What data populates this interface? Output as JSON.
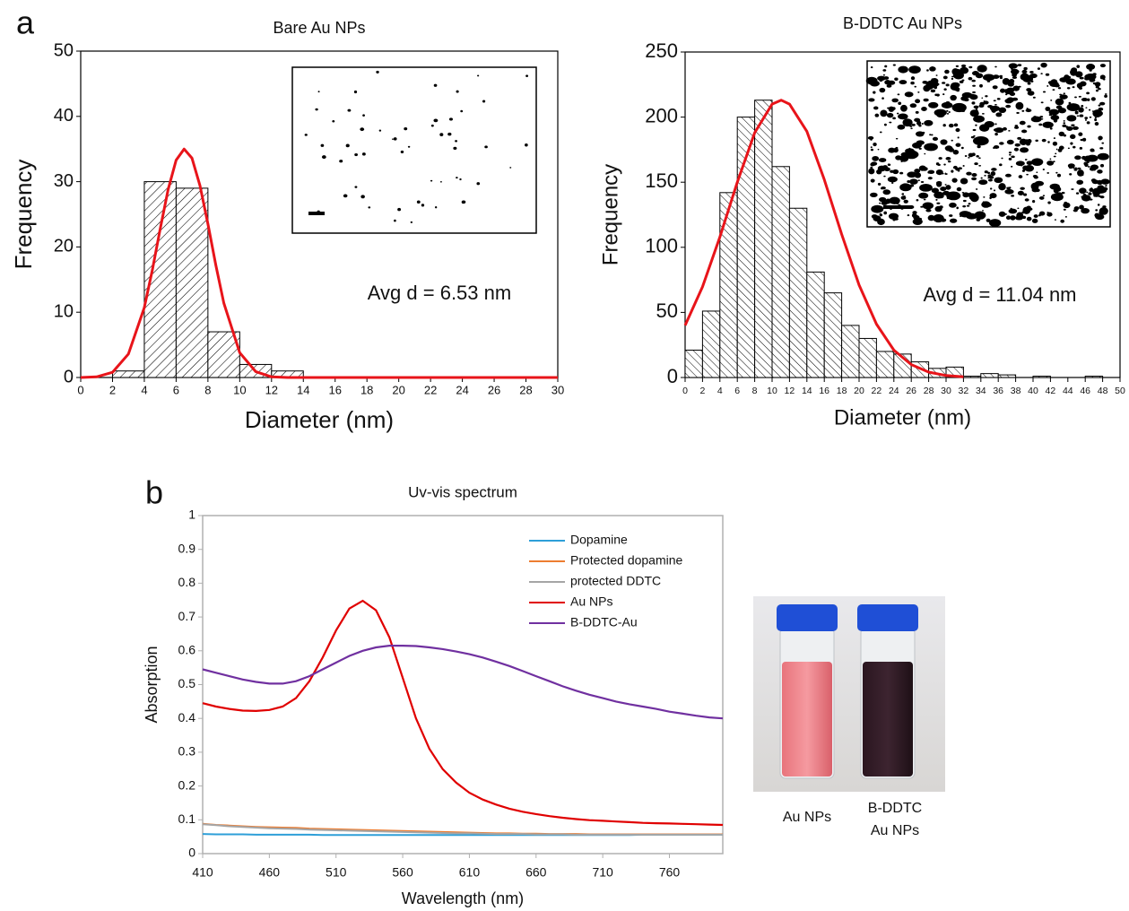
{
  "chart_data": [
    {
      "type": "histogram",
      "panel_label": "a",
      "title": "Bare Au NPs",
      "xlabel": "Diameter (nm)",
      "ylabel": "Frequency",
      "bins": [
        0,
        2,
        4,
        6,
        8,
        10,
        12,
        14,
        16,
        18,
        20,
        22,
        24,
        26,
        28,
        30
      ],
      "values": [
        0,
        1,
        30,
        29,
        7,
        2,
        1,
        0,
        0,
        0,
        0,
        0,
        0,
        0,
        0
      ],
      "color": "#000000",
      "curve": {
        "x": [
          0,
          1,
          2,
          3,
          4,
          4.5,
          5,
          5.5,
          6,
          6.5,
          7,
          7.5,
          8,
          8.5,
          9,
          10,
          11,
          12,
          13,
          14,
          30
        ],
        "values": [
          0,
          0.1,
          0.8,
          3.6,
          10.7,
          16.4,
          22.8,
          28.8,
          33.3,
          35,
          33.6,
          29.4,
          23.5,
          17.2,
          11.4,
          3.8,
          0.9,
          0.1,
          0,
          0,
          0
        ],
        "color": "#e8141a"
      },
      "annotation": "Avg d = 6.53 nm",
      "xlim": [
        0,
        30
      ],
      "xticks": [
        0,
        2,
        4,
        6,
        8,
        10,
        12,
        14,
        16,
        18,
        20,
        22,
        24,
        26,
        28,
        30
      ],
      "ylim": [
        0,
        50
      ],
      "yticks": [
        0,
        10,
        20,
        30,
        40,
        50
      ]
    },
    {
      "type": "histogram",
      "title": "B-DDTC Au NPs",
      "xlabel": "Diameter (nm)",
      "ylabel": "Frequency",
      "bins": [
        0,
        2,
        4,
        6,
        8,
        10,
        12,
        14,
        16,
        18,
        20,
        22,
        24,
        26,
        28,
        30,
        32,
        34,
        36,
        38,
        40,
        42,
        44,
        46,
        48,
        50
      ],
      "values": [
        21,
        51,
        142,
        200,
        213,
        162,
        130,
        81,
        65,
        40,
        30,
        20,
        18,
        12,
        7,
        8,
        1,
        3,
        2,
        0,
        1,
        0,
        0,
        1,
        0
      ],
      "color": "#000000",
      "curve": {
        "x": [
          0,
          2,
          4,
          6,
          8,
          10,
          11.04,
          12,
          14,
          16,
          18,
          20,
          22,
          24,
          26,
          28,
          30,
          32
        ],
        "values": [
          40,
          69.6,
          108,
          150,
          188,
          210,
          213,
          210,
          189,
          152,
          110,
          71,
          41,
          21,
          9.9,
          4.1,
          1.5,
          0.5
        ],
        "color": "#e8141a"
      },
      "annotation": "Avg d = 11.04 nm",
      "xlim": [
        0,
        50
      ],
      "xticks": [
        0,
        2,
        4,
        6,
        8,
        10,
        12,
        14,
        16,
        18,
        20,
        22,
        24,
        26,
        28,
        30,
        32,
        34,
        36,
        38,
        40,
        42,
        44,
        46,
        48,
        50
      ],
      "ylim": [
        0,
        250
      ],
      "yticks": [
        0,
        50,
        100,
        150,
        200,
        250
      ]
    },
    {
      "type": "line",
      "panel_label": "b",
      "title": "Uv-vis spectrum",
      "xlabel": "Wavelength (nm)",
      "ylabel": "Absorption",
      "x": [
        410,
        420,
        430,
        440,
        450,
        460,
        470,
        480,
        490,
        500,
        510,
        520,
        530,
        540,
        550,
        560,
        570,
        580,
        590,
        600,
        610,
        620,
        630,
        640,
        650,
        660,
        670,
        680,
        690,
        700,
        710,
        720,
        730,
        740,
        750,
        760,
        770,
        780,
        790,
        800
      ],
      "series": [
        {
          "name": "Dopamine",
          "color": "#2e9fd8",
          "values": [
            0.058,
            0.057,
            0.057,
            0.057,
            0.056,
            0.056,
            0.056,
            0.056,
            0.056,
            0.055,
            0.055,
            0.055,
            0.055,
            0.055,
            0.055,
            0.055,
            0.055,
            0.055,
            0.055,
            0.055,
            0.055,
            0.055,
            0.055,
            0.055,
            0.055,
            0.055,
            0.055,
            0.055,
            0.055,
            0.055,
            0.055,
            0.055,
            0.055,
            0.056,
            0.056,
            0.056,
            0.056,
            0.056,
            0.056,
            0.056
          ]
        },
        {
          "name": "Protected dopamine",
          "color": "#ed7d31",
          "values": [
            0.088,
            0.085,
            0.083,
            0.081,
            0.079,
            0.078,
            0.077,
            0.076,
            0.074,
            0.073,
            0.072,
            0.071,
            0.07,
            0.069,
            0.068,
            0.067,
            0.066,
            0.065,
            0.064,
            0.063,
            0.062,
            0.061,
            0.06,
            0.06,
            0.059,
            0.059,
            0.058,
            0.058,
            0.058,
            0.057,
            0.057,
            0.057,
            0.057,
            0.057,
            0.057,
            0.057,
            0.057,
            0.057,
            0.057,
            0.057
          ]
        },
        {
          "name": "protected DDTC",
          "color": "#a5a5a5",
          "values": [
            0.087,
            0.084,
            0.081,
            0.079,
            0.077,
            0.075,
            0.074,
            0.073,
            0.071,
            0.07,
            0.069,
            0.068,
            0.067,
            0.066,
            0.065,
            0.064,
            0.063,
            0.062,
            0.061,
            0.06,
            0.06,
            0.059,
            0.058,
            0.058,
            0.058,
            0.057,
            0.057,
            0.057,
            0.056,
            0.056,
            0.056,
            0.056,
            0.056,
            0.056,
            0.056,
            0.056,
            0.056,
            0.056,
            0.056,
            0.056
          ]
        },
        {
          "name": "Au NPs",
          "color": "#e00000",
          "values": [
            0.445,
            0.435,
            0.428,
            0.423,
            0.422,
            0.425,
            0.435,
            0.46,
            0.51,
            0.58,
            0.66,
            0.725,
            0.748,
            0.72,
            0.64,
            0.52,
            0.4,
            0.31,
            0.25,
            0.21,
            0.18,
            0.16,
            0.145,
            0.133,
            0.124,
            0.117,
            0.111,
            0.106,
            0.102,
            0.099,
            0.097,
            0.095,
            0.093,
            0.091,
            0.09,
            0.089,
            0.088,
            0.087,
            0.086,
            0.085
          ]
        },
        {
          "name": "B-DDTC-Au",
          "color": "#7030a0",
          "values": [
            0.545,
            0.535,
            0.525,
            0.515,
            0.508,
            0.503,
            0.503,
            0.51,
            0.525,
            0.545,
            0.565,
            0.585,
            0.6,
            0.61,
            0.615,
            0.615,
            0.614,
            0.61,
            0.605,
            0.598,
            0.59,
            0.58,
            0.568,
            0.555,
            0.54,
            0.525,
            0.51,
            0.495,
            0.482,
            0.47,
            0.46,
            0.45,
            0.442,
            0.435,
            0.428,
            0.42,
            0.414,
            0.408,
            0.403,
            0.4
          ]
        }
      ],
      "xlim": [
        410,
        800
      ],
      "xticks": [
        410,
        460,
        510,
        560,
        610,
        660,
        710,
        760
      ],
      "ylim": [
        0,
        1
      ],
      "yticks": [
        0,
        0.1,
        0.2,
        0.3,
        0.4,
        0.5,
        0.6,
        0.7,
        0.8,
        0.9,
        1
      ]
    }
  ],
  "photo": {
    "captions": [
      [
        "Au NPs"
      ],
      [
        "B-DDTC",
        "Au NPs"
      ]
    ]
  }
}
